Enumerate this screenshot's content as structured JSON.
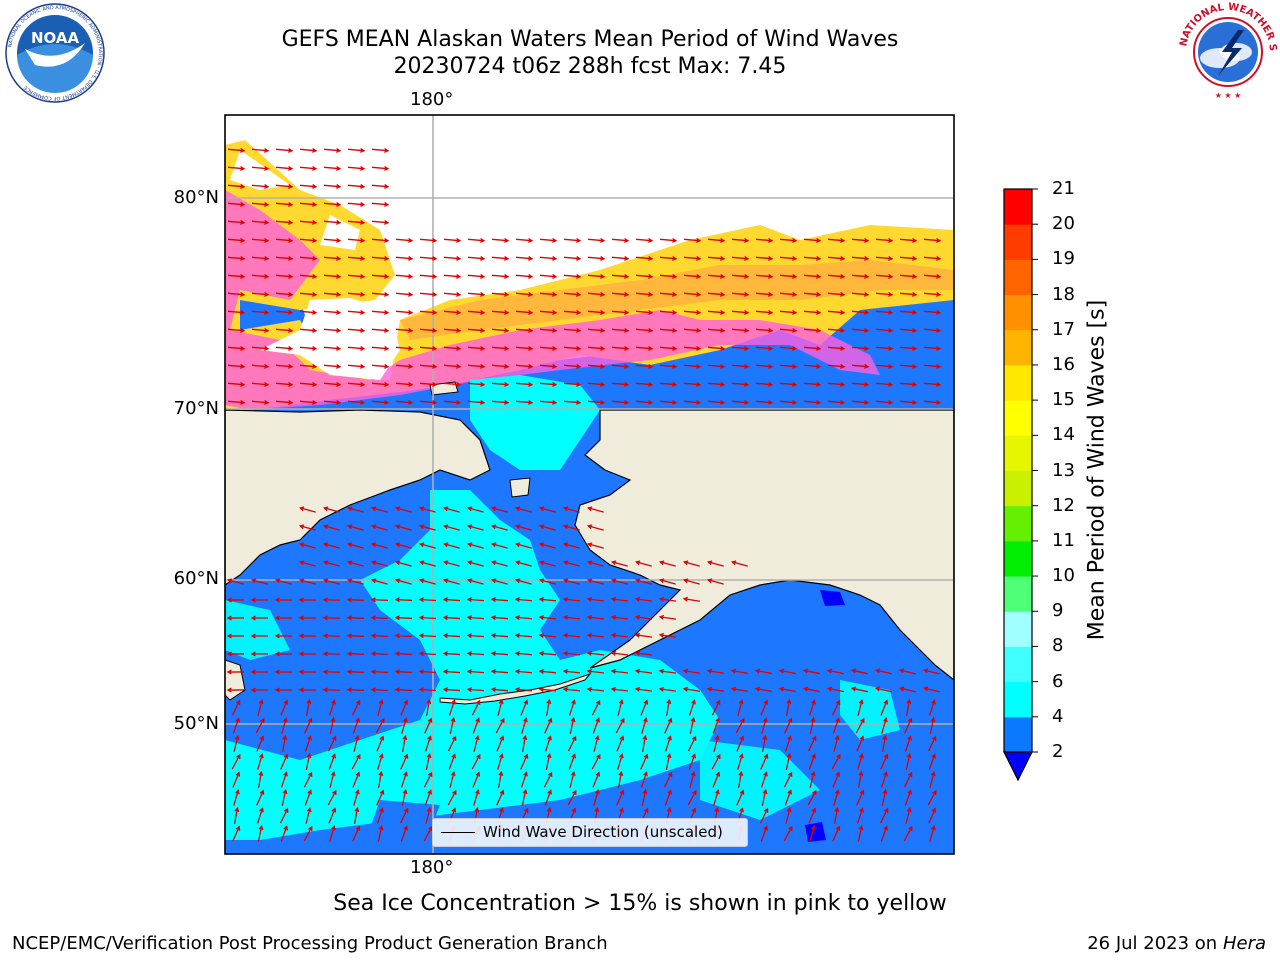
{
  "title": {
    "line1": "GEFS MEAN Alaskan Waters Mean Period of Wind Waves",
    "line2": "20230724 t06z 288h fcst   Max: 7.45"
  },
  "logos": {
    "left": "noaa-logo",
    "left_text": "NOAA",
    "left_ring_text": "NATIONAL OCEANIC AND ATMOSPHERIC ADMINISTRATION · U.S. DEPARTMENT OF COMMERCE",
    "right": "national-weather-service-logo",
    "right_ring_text": "NATIONAL WEATHER SERVICE"
  },
  "map": {
    "lon_label_top": "180°",
    "lon_label_bottom": "180°",
    "lat_labels": [
      "80°N",
      "70°N",
      "60°N",
      "50°N"
    ],
    "legend_label": "Wind Wave Direction (unscaled)",
    "colors": {
      "land": "#efecdc",
      "ocean_low": "#1e78ff",
      "ocean_mid": "#00ffff",
      "ice_pink": "#ff60e0",
      "ice_orange": "#ffb040",
      "ice_yellow": "#ffd830",
      "arrow": "#e00000",
      "grid": "#b0b0b0"
    }
  },
  "colorbar": {
    "title": "Mean Period of Wind Waves [s]",
    "ticks": [
      "2",
      "4",
      "6",
      "8",
      "9",
      "10",
      "11",
      "12",
      "13",
      "14",
      "15",
      "16",
      "17",
      "18",
      "19",
      "20",
      "21"
    ],
    "colors": [
      "#0a78ff",
      "#00ffff",
      "#40ffff",
      "#a0ffff",
      "#50ff78",
      "#00ee00",
      "#64f000",
      "#c8f000",
      "#e6f500",
      "#ffff00",
      "#ffe800",
      "#ffb400",
      "#ff9000",
      "#ff6400",
      "#ff3c00",
      "#ff0000"
    ],
    "under_color": "#0000ff"
  },
  "note": "Sea Ice Concentration > 15% is shown in pink to yellow",
  "footer": {
    "left": "NCEP/EMC/Verification Post Processing Product Generation Branch",
    "right_date": "26 Jul 2023 on ",
    "right_host": "Hera"
  }
}
